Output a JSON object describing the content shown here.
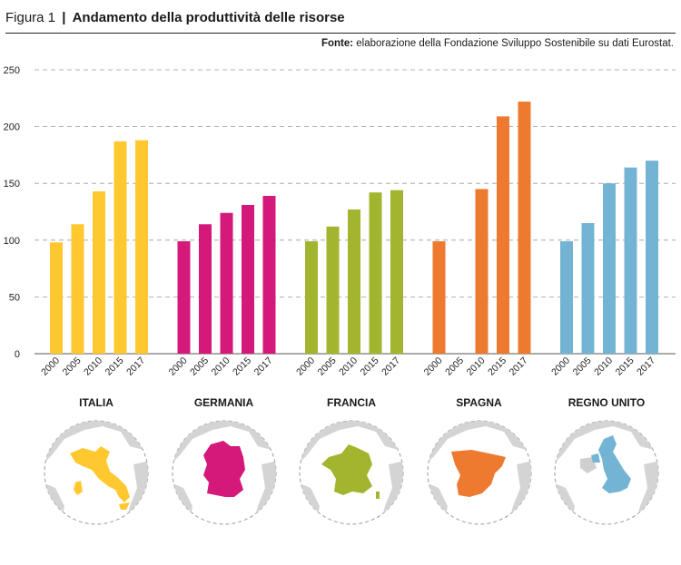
{
  "header": {
    "figure_label": "Figura 1",
    "separator": "|",
    "title": "Andamento della produttività delle risorse",
    "source_label": "Fonte:",
    "source_text": " elaborazione della Fondazione Sviluppo Sostenibile su dati Eurostat."
  },
  "chart_data": {
    "type": "bar",
    "title": "Andamento della produttività delle risorse",
    "xlabel": "",
    "ylabel": "",
    "ylim": [
      0,
      250
    ],
    "yticks": [
      0,
      50,
      100,
      150,
      200,
      250
    ],
    "grid": "horizontal dashed",
    "groups": [
      {
        "name": "ITALIA",
        "color": "#FFC82E",
        "categories": [
          "2000",
          "2005",
          "2010",
          "2015",
          "2017"
        ],
        "values": [
          98,
          114,
          143,
          187,
          188
        ]
      },
      {
        "name": "GERMANIA",
        "color": "#D4197A",
        "categories": [
          "2000",
          "2005",
          "2010",
          "2015",
          "2017"
        ],
        "values": [
          99,
          114,
          124,
          131,
          139
        ]
      },
      {
        "name": "FRANCIA",
        "color": "#A3B52E",
        "categories": [
          "2000",
          "2005",
          "2010",
          "2015",
          "2017"
        ],
        "values": [
          99,
          112,
          127,
          142,
          144
        ]
      },
      {
        "name": "SPAGNA",
        "color": "#EE7A2F",
        "categories": [
          "2000",
          "2005",
          "2010",
          "2015",
          "2017"
        ],
        "values": [
          99,
          null,
          145,
          209,
          222
        ]
      },
      {
        "name": "REGNO UNITO",
        "color": "#73B4D4",
        "categories": [
          "2000",
          "2005",
          "2010",
          "2015",
          "2017"
        ],
        "values": [
          99,
          115,
          150,
          164,
          170
        ]
      }
    ]
  }
}
